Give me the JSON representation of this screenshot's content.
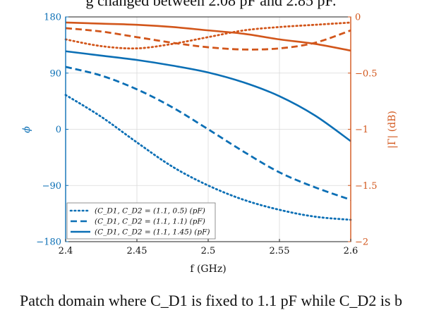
{
  "caption": {
    "top": "g changed between 2.08 pF and 2.85 pF.",
    "bottom": "Patch domain where C_D1 is fixed to 1.1 pF while C_D2 is b"
  },
  "colors": {
    "blue": "#0b6fb5",
    "orange": "#d2561b",
    "grid": "#d9d9d9"
  },
  "chart_data": {
    "type": "line",
    "xlabel": "f (GHz)",
    "ylabel_left": "ϕ",
    "ylabel_right": "|Γ| (dB)",
    "xlim": [
      2.4,
      2.6
    ],
    "ylim_left": [
      -180,
      180
    ],
    "ylim_right": [
      -2,
      0
    ],
    "x_ticks": [
      "2.4",
      "2.45",
      "2.5",
      "2.55",
      "2.6"
    ],
    "y_ticks_left": [
      "180",
      "90",
      "0",
      "−90",
      "−180"
    ],
    "y_ticks_right": [
      "0",
      "−0.5",
      "−1",
      "−1.5",
      "−2"
    ],
    "grid": true,
    "legend_position": "bottom-left",
    "x": [
      2.4,
      2.425,
      2.45,
      2.475,
      2.5,
      2.525,
      2.55,
      2.575,
      2.6
    ],
    "series": [
      {
        "name": "(C_D1, C_D2 = (1.1, 0.5) (pF)",
        "axis": "left",
        "style": "dotted",
        "color": "blue",
        "values": [
          55,
          20,
          -21,
          -60,
          -90,
          -113,
          -129,
          -140,
          -145
        ]
      },
      {
        "name": "(C_D1, C_D2 = (1.1, 1.1) (pF)",
        "axis": "left",
        "style": "dashed",
        "color": "blue",
        "values": [
          100,
          86,
          64,
          35,
          0,
          -36,
          -69,
          -93,
          -113
        ]
      },
      {
        "name": "(C_D1, C_D2 = (1.1, 1.45) (pF)",
        "axis": "left",
        "style": "solid",
        "color": "blue",
        "values": [
          125,
          118,
          111,
          102,
          91,
          75,
          53,
          22,
          -19
        ]
      },
      {
        "axis": "right",
        "style": "dotted",
        "color": "orange",
        "values": [
          -0.2,
          -0.26,
          -0.28,
          -0.24,
          -0.18,
          -0.12,
          -0.09,
          -0.07,
          -0.05
        ]
      },
      {
        "axis": "right",
        "style": "dashed",
        "color": "orange",
        "values": [
          -0.1,
          -0.13,
          -0.18,
          -0.23,
          -0.27,
          -0.29,
          -0.28,
          -0.23,
          -0.12
        ]
      },
      {
        "axis": "right",
        "style": "solid",
        "color": "orange",
        "values": [
          -0.05,
          -0.06,
          -0.07,
          -0.09,
          -0.12,
          -0.15,
          -0.2,
          -0.24,
          -0.3
        ]
      }
    ]
  }
}
